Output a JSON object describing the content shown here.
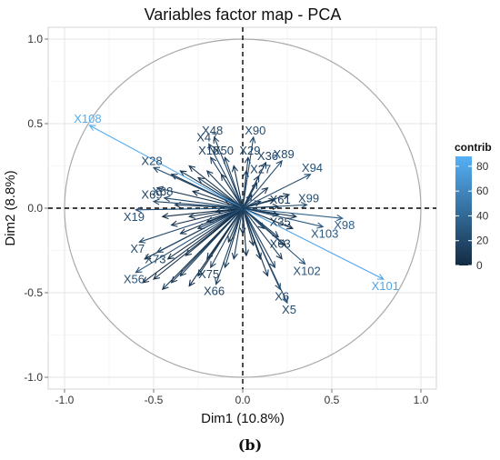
{
  "chart_data": {
    "type": "scatter",
    "title": "Variables factor map - PCA",
    "xlabel": "Dim1 (10.8%)",
    "ylabel": "Dim2 (8.8%)",
    "xlim": [
      -1.05,
      1.05
    ],
    "ylim": [
      -1.05,
      1.05
    ],
    "xticks": [
      -1.0,
      -0.5,
      0.0,
      0.5,
      1.0
    ],
    "yticks": [
      -1.0,
      -0.5,
      0.0,
      0.5,
      1.0
    ],
    "xtick_labels": [
      "-1.0",
      "-0.5",
      "0.0",
      "0.5",
      "1.0"
    ],
    "ytick_labels": [
      "-1.0",
      "-0.5",
      "0.0",
      "0.5",
      "1.0"
    ],
    "grid": true,
    "legend": {
      "title": "contrib",
      "placement": "right",
      "range": [
        0,
        88
      ],
      "ticks": [
        0,
        20,
        40,
        60,
        80
      ],
      "tick_labels": [
        "0",
        "20",
        "40",
        "60",
        "80"
      ],
      "color_low": "#132b43",
      "color_high": "#56b1f7"
    },
    "circle_color": "#aaaaaa",
    "labeled_arrows": [
      {
        "name": "X108",
        "x": -0.86,
        "y": 0.49,
        "contrib": 85
      },
      {
        "name": "X101",
        "x": 0.79,
        "y": -0.42,
        "contrib": 80
      },
      {
        "name": "X98",
        "x": 0.56,
        "y": -0.06,
        "contrib": 35
      },
      {
        "name": "X103",
        "x": 0.45,
        "y": -0.11,
        "contrib": 30
      },
      {
        "name": "X102",
        "x": 0.35,
        "y": -0.33,
        "contrib": 28
      },
      {
        "name": "X94",
        "x": 0.38,
        "y": 0.2,
        "contrib": 26
      },
      {
        "name": "X99",
        "x": 0.36,
        "y": 0.02,
        "contrib": 24
      },
      {
        "name": "X90",
        "x": 0.06,
        "y": 0.42,
        "contrib": 22
      },
      {
        "name": "X89",
        "x": 0.22,
        "y": 0.28,
        "contrib": 20
      },
      {
        "name": "X36",
        "x": 0.13,
        "y": 0.27,
        "contrib": 16
      },
      {
        "name": "X29",
        "x": 0.03,
        "y": 0.3,
        "contrib": 14
      },
      {
        "name": "X27",
        "x": 0.09,
        "y": 0.19,
        "contrib": 12
      },
      {
        "name": "X48",
        "x": -0.16,
        "y": 0.42,
        "contrib": 20
      },
      {
        "name": "X47",
        "x": -0.19,
        "y": 0.38,
        "contrib": 18
      },
      {
        "name": "X50",
        "x": -0.1,
        "y": 0.3,
        "contrib": 15
      },
      {
        "name": "X16",
        "x": -0.18,
        "y": 0.3,
        "contrib": 14
      },
      {
        "name": "X28",
        "x": -0.5,
        "y": 0.24,
        "contrib": 22
      },
      {
        "name": "X19",
        "x": -0.6,
        "y": -0.01,
        "contrib": 24
      },
      {
        "name": "X68",
        "x": -0.44,
        "y": 0.06,
        "contrib": 18
      },
      {
        "name": "X69",
        "x": -0.5,
        "y": 0.04,
        "contrib": 18
      },
      {
        "name": "X7",
        "x": -0.58,
        "y": -0.2,
        "contrib": 22
      },
      {
        "name": "X56",
        "x": -0.6,
        "y": -0.38,
        "contrib": 26
      },
      {
        "name": "X73",
        "x": -0.48,
        "y": -0.26,
        "contrib": 20
      },
      {
        "name": "X66",
        "x": -0.15,
        "y": -0.45,
        "contrib": 18
      },
      {
        "name": "X75",
        "x": -0.18,
        "y": -0.35,
        "contrib": 16
      },
      {
        "name": "X6",
        "x": 0.21,
        "y": -0.48,
        "contrib": 20
      },
      {
        "name": "X5",
        "x": 0.25,
        "y": -0.56,
        "contrib": 22
      },
      {
        "name": "X63",
        "x": 0.2,
        "y": -0.17,
        "contrib": 12
      },
      {
        "name": "X61",
        "x": 0.2,
        "y": 0.01,
        "contrib": 10
      },
      {
        "name": "X35",
        "x": 0.2,
        "y": -0.04,
        "contrib": 10
      }
    ],
    "other_arrows": {
      "note": "many further unlabeled/overlapping variables",
      "points": [
        [
          -0.4,
          0.2
        ],
        [
          -0.35,
          0.22
        ],
        [
          -0.3,
          0.25
        ],
        [
          -0.25,
          0.18
        ],
        [
          -0.2,
          0.22
        ],
        [
          -0.12,
          0.2
        ],
        [
          -0.05,
          0.25
        ],
        [
          0.02,
          0.22
        ],
        [
          0.08,
          0.15
        ],
        [
          0.14,
          0.12
        ],
        [
          -0.45,
          -0.05
        ],
        [
          -0.4,
          -0.1
        ],
        [
          -0.35,
          -0.15
        ],
        [
          -0.3,
          -0.05
        ],
        [
          -0.25,
          -0.12
        ],
        [
          -0.2,
          -0.08
        ],
        [
          -0.15,
          -0.02
        ],
        [
          -0.1,
          0.05
        ],
        [
          0.05,
          0.08
        ],
        [
          0.1,
          0.04
        ],
        [
          -0.55,
          -0.3
        ],
        [
          -0.5,
          -0.42
        ],
        [
          -0.45,
          -0.48
        ],
        [
          -0.4,
          -0.44
        ],
        [
          -0.35,
          -0.4
        ],
        [
          -0.3,
          -0.46
        ],
        [
          -0.25,
          -0.4
        ],
        [
          -0.2,
          -0.3
        ],
        [
          -0.1,
          -0.35
        ],
        [
          -0.05,
          -0.3
        ],
        [
          0.02,
          -0.28
        ],
        [
          0.06,
          -0.22
        ],
        [
          0.1,
          -0.3
        ],
        [
          0.14,
          -0.4
        ],
        [
          0.18,
          -0.35
        ],
        [
          0.24,
          -0.22
        ],
        [
          0.28,
          -0.12
        ],
        [
          0.3,
          -0.05
        ],
        [
          0.26,
          0.08
        ],
        [
          0.18,
          0.05
        ],
        [
          -0.56,
          -0.44
        ],
        [
          -0.42,
          -0.3
        ],
        [
          -0.32,
          -0.28
        ],
        [
          -0.38,
          0.02
        ],
        [
          -0.48,
          0.12
        ],
        [
          -0.28,
          0.1
        ],
        [
          0.0,
          -0.15
        ],
        [
          -0.08,
          -0.2
        ],
        [
          0.12,
          -0.12
        ],
        [
          0.22,
          -0.3
        ]
      ],
      "contrib_range": [
        2,
        12
      ]
    },
    "caption": "(b)"
  }
}
